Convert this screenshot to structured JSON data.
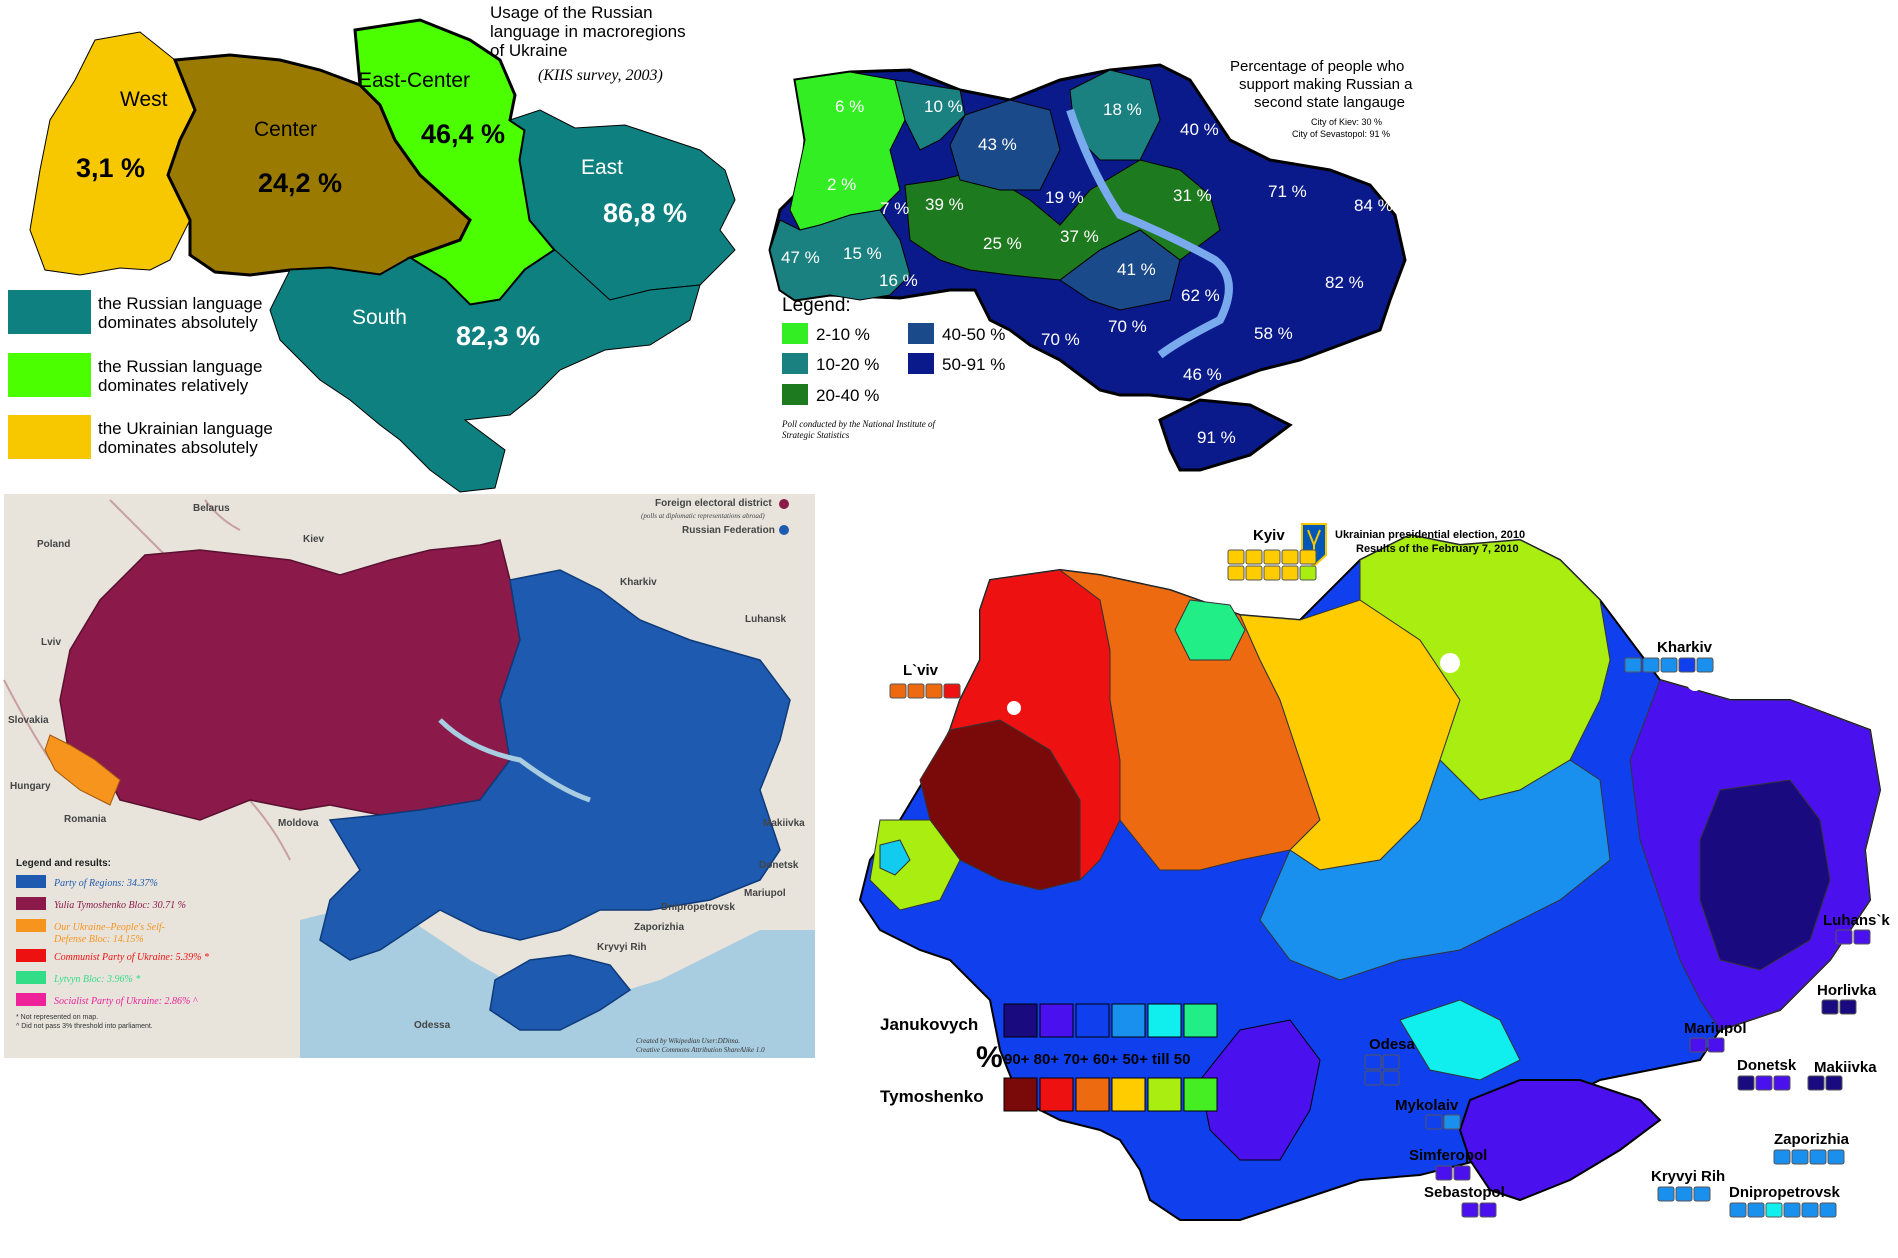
{
  "map1": {
    "title_lines": [
      "Usage of the Russian",
      "language in macroregions",
      "of Ukraine"
    ],
    "subtitle": "(KIIS survey, 2003)",
    "regions": [
      {
        "name": "West",
        "value": "3,1 %",
        "color": "#f7c800"
      },
      {
        "name": "Center",
        "value": "24,2 %",
        "color": "#9a7a00"
      },
      {
        "name": "East-Center",
        "value": "46,4 %",
        "color": "#4cff00"
      },
      {
        "name": "East",
        "value": "86,8 %",
        "color": "#0f8080"
      },
      {
        "name": "South",
        "value": "82,3 %",
        "color": "#0f8080"
      }
    ],
    "legend": [
      {
        "lines": [
          "the Russian language",
          "dominates absolutely"
        ],
        "color": "#0f8080"
      },
      {
        "lines": [
          "the Russian language",
          "dominates relatively"
        ],
        "color": "#4cff00"
      },
      {
        "lines": [
          "the Ukrainian language",
          "dominates  absolutely"
        ],
        "color": "#f7c800"
      }
    ]
  },
  "map2": {
    "title_lines": [
      "Percentage of people who",
      "support making Russian a",
      "second state langauge"
    ],
    "notes": [
      "City of Kiev: 30 %",
      "City of Sevastopol: 91 %"
    ],
    "legend_title": "Legend:",
    "legend": [
      {
        "label": "2-10 %",
        "color": "#33ee22"
      },
      {
        "label": "10-20 %",
        "color": "#1a8080"
      },
      {
        "label": "20-40 %",
        "color": "#1e7a1e"
      },
      {
        "label": "40-50 %",
        "color": "#1a4a8a"
      },
      {
        "label": "50-91 %",
        "color": "#0a1a8a"
      }
    ],
    "values": [
      "6 %",
      "10 %",
      "43 %",
      "18 %",
      "40 %",
      "2 %",
      "7 %",
      "39 %",
      "19 %",
      "31 %",
      "71 %",
      "84 %",
      "47 %",
      "15 %",
      "16 %",
      "25 %",
      "37 %",
      "41 %",
      "62 %",
      "82 %",
      "70 %",
      "70 %",
      "58 %",
      "46 %",
      "91 %"
    ],
    "credit_lines": [
      "Poll conducted by the National Institute of",
      "Strategic Statistics"
    ]
  },
  "map3": {
    "countries": [
      "Belarus",
      "Poland",
      "Slovakia",
      "Hungary",
      "Romania",
      "Moldova"
    ],
    "cities": [
      "Kiev",
      "Lviv",
      "Kharkiv",
      "Luhansk",
      "Makiivka",
      "Donetsk",
      "Mariupol",
      "Dnipropetrovsk",
      "Zaporizhia",
      "Kryvyi Rih",
      "Odessa"
    ],
    "foreign_title": "Foreign electoral district",
    "foreign_sub": "(polls at diplomatic representations abroad)",
    "foreign_rf": "Russian Federation",
    "legend_title": "Legend and results:",
    "legend": [
      {
        "label": "Party of Regions: 34.37%",
        "color": "#1e5bb0"
      },
      {
        "label": "Yulia Tymoshenko Bloc: 30.71 %",
        "color": "#8b1a4a"
      },
      {
        "label": "Our Ukraine–People's Self-",
        "label2": "Defense Bloc: 14.15%",
        "color": "#f7941d"
      },
      {
        "label": "Communist Party of Ukraine: 5.39% *",
        "color": "#ee1111"
      },
      {
        "label": "Lytvyn Bloc: 3.96% *",
        "color": "#33dd88"
      },
      {
        "label": "Socialist Party of Ukraine: 2.86% ^",
        "color": "#ee2299"
      }
    ],
    "footnotes": [
      "* Not represented on map.",
      "^ Did not pass 3% threshold into parliament."
    ],
    "credit_lines": [
      "Created by Wikipedian User:DDima.",
      "Creative Commons Attribution ShareAlike 1.0"
    ]
  },
  "map4": {
    "title_lines": [
      "Ukrainian presidential election, 2010",
      "Results of the February 7, 2010"
    ],
    "cities": [
      "Kyiv",
      "L`viv",
      "Kharkiv",
      "Luhans`k",
      "Horlivka",
      "Mariupol",
      "Donetsk",
      "Makiivka",
      "Odesa",
      "Mykolaiv",
      "Zaporizhia",
      "Simferopol",
      "Kryvyi Rih",
      "Dnipropetrovsk",
      "Sebastopol"
    ],
    "legend_top": "Janukovych",
    "legend_bottom": "Tymoshenko",
    "legend_symbol": "%",
    "legend_scale": "90+ 80+ 70+ 60+ 50+  till 50",
    "janukovych_colors": [
      "#1a0a80",
      "#4a10ee",
      "#1040ee",
      "#1a90ee",
      "#11eeee",
      "#22ee88"
    ],
    "tymoshenko_colors": [
      "#7a0a0a",
      "#ee1111",
      "#ee6a11",
      "#ffcc00",
      "#aaee11",
      "#44ee22"
    ]
  }
}
